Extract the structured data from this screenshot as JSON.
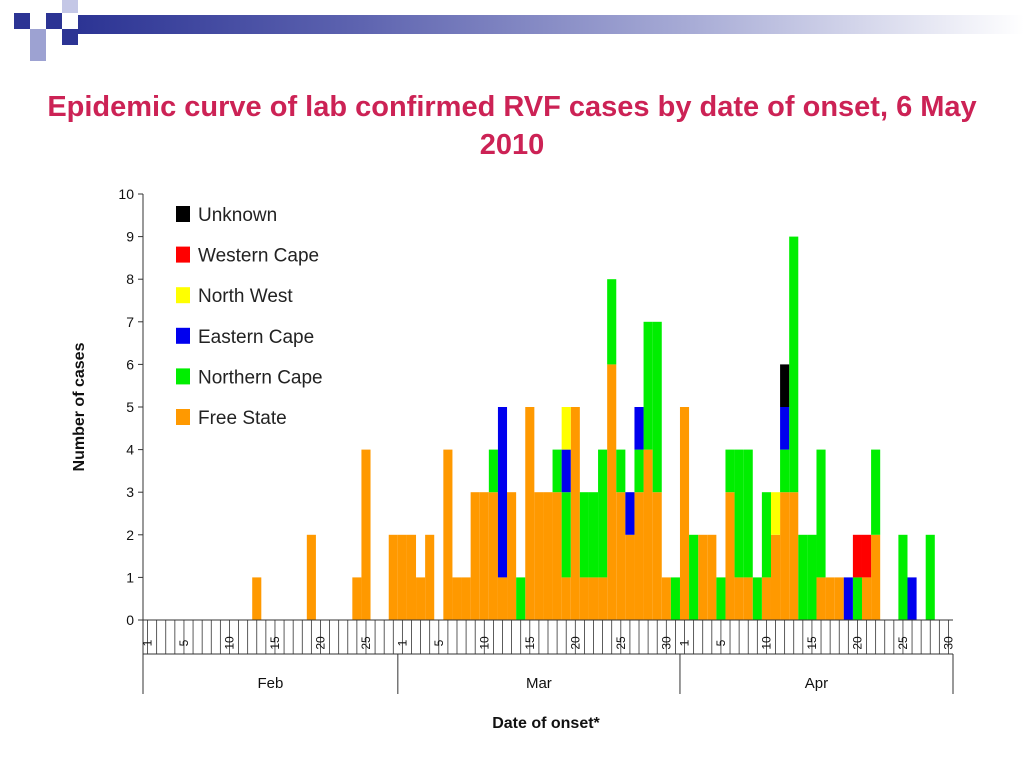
{
  "title": "Epidemic curve of lab confirmed RVF cases by date of onset, 6 May 2010",
  "colors": {
    "title": "#cc2255",
    "Unknown": "#000000",
    "Western Cape": "#ff0000",
    "North West": "#ffff00",
    "Eastern Cape": "#0000ee",
    "Northern Cape": "#00ee00",
    "Free State": "#ff9900"
  },
  "chart_data": {
    "type": "bar",
    "stacked": true,
    "title": "Epidemic curve of lab confirmed RVF cases by date of onset, 6 May 2010",
    "xlabel": "Date of onset*",
    "ylabel": "Number of cases",
    "ylim": [
      0,
      10
    ],
    "yticks": [
      0,
      1,
      2,
      3,
      4,
      5,
      6,
      7,
      8,
      9,
      10
    ],
    "months": [
      {
        "name": "Feb",
        "days": 28,
        "tick_labels": [
          "1",
          "5",
          "10",
          "15",
          "20",
          "25"
        ]
      },
      {
        "name": "Mar",
        "days": 31,
        "tick_labels": [
          "1",
          "5",
          "10",
          "15",
          "20",
          "25",
          "30"
        ]
      },
      {
        "name": "Apr",
        "days": 30,
        "tick_labels": [
          "1",
          "5",
          "10",
          "15",
          "20",
          "25",
          "30"
        ]
      }
    ],
    "legend_position": "top-left",
    "series": [
      {
        "name": "Unknown",
        "color": "#000000",
        "points": [
          {
            "month": "Apr",
            "day": 12,
            "value": 1
          }
        ]
      },
      {
        "name": "Western Cape",
        "color": "#ff0000",
        "points": [
          {
            "month": "Apr",
            "day": 20,
            "value": 1
          },
          {
            "month": "Apr",
            "day": 21,
            "value": 1
          }
        ]
      },
      {
        "name": "North West",
        "color": "#ffff00",
        "points": [
          {
            "month": "Mar",
            "day": 19,
            "value": 1
          },
          {
            "month": "Apr",
            "day": 11,
            "value": 1
          }
        ]
      },
      {
        "name": "Eastern Cape",
        "color": "#0000ee",
        "points": [
          {
            "month": "Mar",
            "day": 12,
            "value": 4
          },
          {
            "month": "Mar",
            "day": 19,
            "value": 1
          },
          {
            "month": "Mar",
            "day": 26,
            "value": 1
          },
          {
            "month": "Mar",
            "day": 27,
            "value": 1
          },
          {
            "month": "Apr",
            "day": 12,
            "value": 1
          },
          {
            "month": "Apr",
            "day": 19,
            "value": 1
          },
          {
            "month": "Apr",
            "day": 26,
            "value": 1
          }
        ]
      },
      {
        "name": "Northern Cape",
        "color": "#00ee00",
        "points": [
          {
            "month": "Mar",
            "day": 11,
            "value": 1
          },
          {
            "month": "Mar",
            "day": 14,
            "value": 1
          },
          {
            "month": "Mar",
            "day": 18,
            "value": 1
          },
          {
            "month": "Mar",
            "day": 19,
            "value": 2
          },
          {
            "month": "Mar",
            "day": 21,
            "value": 2
          },
          {
            "month": "Mar",
            "day": 22,
            "value": 2
          },
          {
            "month": "Mar",
            "day": 23,
            "value": 3
          },
          {
            "month": "Mar",
            "day": 24,
            "value": 2
          },
          {
            "month": "Mar",
            "day": 25,
            "value": 1
          },
          {
            "month": "Mar",
            "day": 27,
            "value": 1
          },
          {
            "month": "Mar",
            "day": 28,
            "value": 3
          },
          {
            "month": "Mar",
            "day": 29,
            "value": 4
          },
          {
            "month": "Mar",
            "day": 31,
            "value": 1
          },
          {
            "month": "Apr",
            "day": 2,
            "value": 2
          },
          {
            "month": "Apr",
            "day": 5,
            "value": 1
          },
          {
            "month": "Apr",
            "day": 6,
            "value": 1
          },
          {
            "month": "Apr",
            "day": 7,
            "value": 3
          },
          {
            "month": "Apr",
            "day": 8,
            "value": 3
          },
          {
            "month": "Apr",
            "day": 9,
            "value": 1
          },
          {
            "month": "Apr",
            "day": 10,
            "value": 2
          },
          {
            "month": "Apr",
            "day": 12,
            "value": 1
          },
          {
            "month": "Apr",
            "day": 13,
            "value": 6
          },
          {
            "month": "Apr",
            "day": 14,
            "value": 2
          },
          {
            "month": "Apr",
            "day": 15,
            "value": 2
          },
          {
            "month": "Apr",
            "day": 16,
            "value": 3
          },
          {
            "month": "Apr",
            "day": 20,
            "value": 1
          },
          {
            "month": "Apr",
            "day": 22,
            "value": 2
          },
          {
            "month": "Apr",
            "day": 25,
            "value": 2
          },
          {
            "month": "Apr",
            "day": 28,
            "value": 2
          }
        ]
      },
      {
        "name": "Free State",
        "color": "#ff9900",
        "points": [
          {
            "month": "Feb",
            "day": 13,
            "value": 1
          },
          {
            "month": "Feb",
            "day": 19,
            "value": 2
          },
          {
            "month": "Feb",
            "day": 24,
            "value": 1
          },
          {
            "month": "Feb",
            "day": 25,
            "value": 4
          },
          {
            "month": "Feb",
            "day": 28,
            "value": 2
          },
          {
            "month": "Mar",
            "day": 1,
            "value": 2
          },
          {
            "month": "Mar",
            "day": 2,
            "value": 2
          },
          {
            "month": "Mar",
            "day": 3,
            "value": 1
          },
          {
            "month": "Mar",
            "day": 4,
            "value": 2
          },
          {
            "month": "Mar",
            "day": 6,
            "value": 4
          },
          {
            "month": "Mar",
            "day": 7,
            "value": 1
          },
          {
            "month": "Mar",
            "day": 8,
            "value": 1
          },
          {
            "month": "Mar",
            "day": 9,
            "value": 3
          },
          {
            "month": "Mar",
            "day": 10,
            "value": 3
          },
          {
            "month": "Mar",
            "day": 11,
            "value": 3
          },
          {
            "month": "Mar",
            "day": 12,
            "value": 1
          },
          {
            "month": "Mar",
            "day": 13,
            "value": 3
          },
          {
            "month": "Mar",
            "day": 15,
            "value": 5
          },
          {
            "month": "Mar",
            "day": 16,
            "value": 3
          },
          {
            "month": "Mar",
            "day": 17,
            "value": 3
          },
          {
            "month": "Mar",
            "day": 18,
            "value": 3
          },
          {
            "month": "Mar",
            "day": 19,
            "value": 1
          },
          {
            "month": "Mar",
            "day": 20,
            "value": 5
          },
          {
            "month": "Mar",
            "day": 21,
            "value": 1
          },
          {
            "month": "Mar",
            "day": 22,
            "value": 1
          },
          {
            "month": "Mar",
            "day": 23,
            "value": 1
          },
          {
            "month": "Mar",
            "day": 24,
            "value": 6
          },
          {
            "month": "Mar",
            "day": 25,
            "value": 3
          },
          {
            "month": "Mar",
            "day": 26,
            "value": 2
          },
          {
            "month": "Mar",
            "day": 27,
            "value": 3
          },
          {
            "month": "Mar",
            "day": 28,
            "value": 4
          },
          {
            "month": "Mar",
            "day": 29,
            "value": 3
          },
          {
            "month": "Mar",
            "day": 30,
            "value": 1
          },
          {
            "month": "Apr",
            "day": 1,
            "value": 5
          },
          {
            "month": "Apr",
            "day": 3,
            "value": 2
          },
          {
            "month": "Apr",
            "day": 4,
            "value": 2
          },
          {
            "month": "Apr",
            "day": 6,
            "value": 3
          },
          {
            "month": "Apr",
            "day": 7,
            "value": 1
          },
          {
            "month": "Apr",
            "day": 8,
            "value": 1
          },
          {
            "month": "Apr",
            "day": 10,
            "value": 1
          },
          {
            "month": "Apr",
            "day": 11,
            "value": 2
          },
          {
            "month": "Apr",
            "day": 12,
            "value": 3
          },
          {
            "month": "Apr",
            "day": 13,
            "value": 3
          },
          {
            "month": "Apr",
            "day": 16,
            "value": 1
          },
          {
            "month": "Apr",
            "day": 17,
            "value": 1
          },
          {
            "month": "Apr",
            "day": 18,
            "value": 1
          },
          {
            "month": "Apr",
            "day": 21,
            "value": 1
          },
          {
            "month": "Apr",
            "day": 22,
            "value": 2
          }
        ]
      }
    ]
  }
}
